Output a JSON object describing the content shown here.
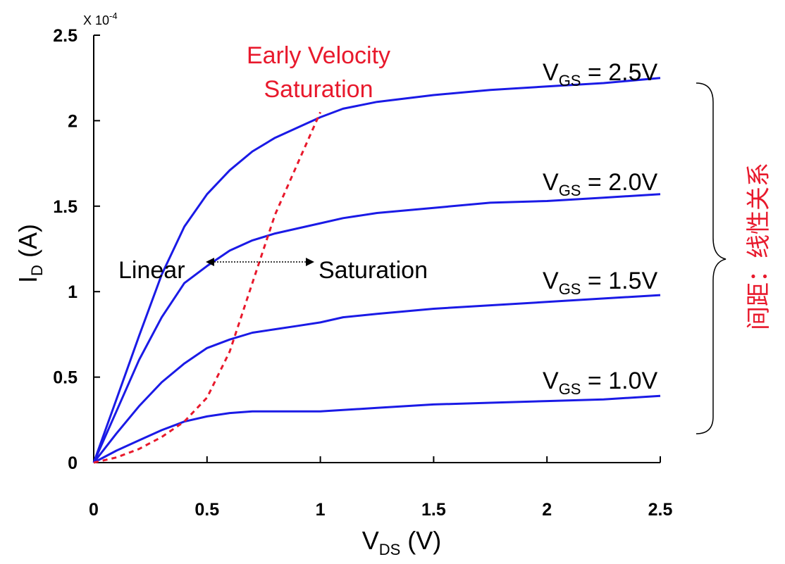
{
  "chart_data": {
    "type": "line",
    "title": "",
    "xlabel": "V",
    "xlabel_sub": "DS",
    "xlabel_unit": " (V)",
    "ylabel": "I",
    "ylabel_sub": "D",
    "ylabel_unit": " (A)",
    "y_exponent_label": "X 10",
    "y_exponent_power": "-4",
    "xlim": [
      0,
      2.5
    ],
    "ylim": [
      0,
      2.5
    ],
    "x_ticks": [
      "0",
      "0.5",
      "1",
      "1.5",
      "2",
      "2.5"
    ],
    "y_ticks": [
      "0",
      "0.5",
      "1",
      "1.5",
      "2",
      "2.5"
    ],
    "grid": false,
    "series_color": "#1a1ae6",
    "boundary_color": "#e8192c",
    "series": [
      {
        "name": "V",
        "sub": "GS",
        "suffix": " = 2.5V",
        "x": [
          0,
          0.1,
          0.2,
          0.3,
          0.4,
          0.5,
          0.6,
          0.7,
          0.8,
          0.9,
          1.0,
          1.1,
          1.25,
          1.5,
          1.75,
          2.0,
          2.25,
          2.5
        ],
        "y": [
          0,
          0.37,
          0.74,
          1.1,
          1.38,
          1.57,
          1.71,
          1.82,
          1.9,
          1.96,
          2.02,
          2.07,
          2.11,
          2.15,
          2.18,
          2.2,
          2.22,
          2.25
        ]
      },
      {
        "name": "V",
        "sub": "GS",
        "suffix": " = 2.0V",
        "x": [
          0,
          0.1,
          0.2,
          0.3,
          0.4,
          0.5,
          0.6,
          0.7,
          0.8,
          0.9,
          1.0,
          1.1,
          1.25,
          1.5,
          1.75,
          2.0,
          2.25,
          2.5
        ],
        "y": [
          0,
          0.3,
          0.6,
          0.85,
          1.05,
          1.15,
          1.24,
          1.3,
          1.34,
          1.37,
          1.4,
          1.43,
          1.46,
          1.49,
          1.52,
          1.53,
          1.55,
          1.57
        ]
      },
      {
        "name": "V",
        "sub": "GS",
        "suffix": " = 1.5V",
        "x": [
          0,
          0.1,
          0.2,
          0.3,
          0.4,
          0.5,
          0.6,
          0.7,
          0.8,
          0.9,
          1.0,
          1.1,
          1.25,
          1.5,
          1.75,
          2.0,
          2.25,
          2.5
        ],
        "y": [
          0,
          0.17,
          0.33,
          0.47,
          0.58,
          0.67,
          0.72,
          0.76,
          0.78,
          0.8,
          0.82,
          0.85,
          0.87,
          0.9,
          0.92,
          0.94,
          0.96,
          0.98
        ]
      },
      {
        "name": "V",
        "sub": "GS",
        "suffix": " = 1.0V",
        "x": [
          0,
          0.1,
          0.2,
          0.3,
          0.4,
          0.5,
          0.6,
          0.7,
          0.8,
          1.0,
          1.25,
          1.5,
          1.75,
          2.0,
          2.25,
          2.5
        ],
        "y": [
          0,
          0.07,
          0.13,
          0.19,
          0.24,
          0.27,
          0.29,
          0.3,
          0.3,
          0.3,
          0.32,
          0.34,
          0.35,
          0.36,
          0.37,
          0.39
        ]
      }
    ],
    "boundary": {
      "name": "Early Velocity Saturation",
      "label_line1": "Early Velocity",
      "label_line2": "Saturation",
      "x": [
        0,
        0.1,
        0.2,
        0.3,
        0.4,
        0.5,
        0.6,
        0.7,
        0.8,
        0.9,
        1.0
      ],
      "y": [
        0,
        0.03,
        0.08,
        0.15,
        0.24,
        0.38,
        0.65,
        1.05,
        1.45,
        1.75,
        2.05
      ]
    },
    "annotations": {
      "linear": "Linear",
      "saturation": "Saturation",
      "spacing_note": "间距：线性关系"
    }
  }
}
